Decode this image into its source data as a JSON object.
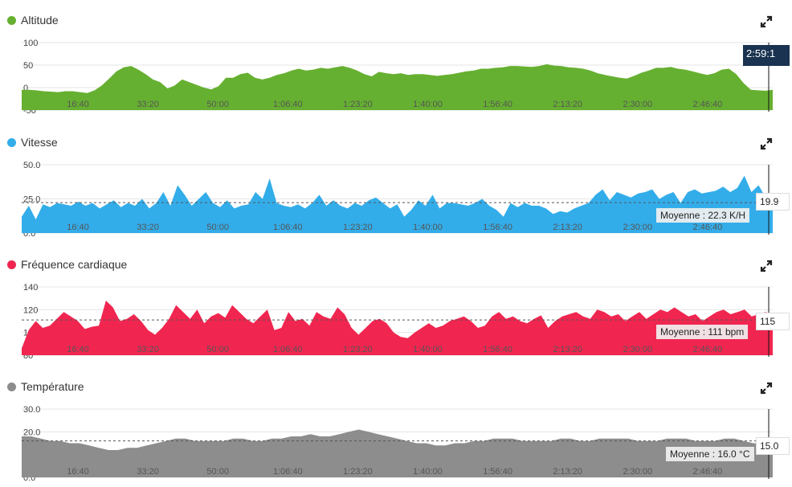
{
  "icons": {
    "expand": "expand-arrows-icon",
    "series_dot": "circle-icon"
  },
  "cursor_time": "2:59:1",
  "x_ticks": [
    "16:40",
    "33:20",
    "50:00",
    "1:06:40",
    "1:23:20",
    "1:40:00",
    "1:56:40",
    "2:13:20",
    "2:30:00",
    "2:46:40"
  ],
  "chart_data": [
    {
      "type": "area",
      "title": "Altitude",
      "color": "#66b031",
      "ylim": [
        -50,
        100
      ],
      "y_ticks": [
        "100",
        "50",
        "0",
        "-50"
      ],
      "x_ticks": [
        "16:40",
        "33:20",
        "50:00",
        "1:06:40",
        "1:23:20",
        "1:40:00",
        "1:56:40",
        "2:13:20",
        "2:30:00",
        "2:46:40"
      ],
      "values": [
        -5,
        -5,
        -6,
        -8,
        -9,
        -10,
        -8,
        -8,
        -10,
        -12,
        -6,
        5,
        20,
        36,
        45,
        48,
        40,
        30,
        18,
        12,
        -2,
        5,
        18,
        12,
        6,
        0,
        -4,
        3,
        22,
        22,
        30,
        33,
        22,
        18,
        22,
        28,
        32,
        38,
        42,
        38,
        40,
        44,
        42,
        45,
        48,
        44,
        38,
        30,
        25,
        35,
        32,
        30,
        32,
        28,
        30,
        30,
        28,
        26,
        28,
        30,
        33,
        36,
        38,
        42,
        42,
        44,
        45,
        48,
        48,
        47,
        46,
        48,
        52,
        49,
        48,
        45,
        44,
        42,
        38,
        32,
        28,
        25,
        22,
        20,
        26,
        33,
        38,
        44,
        44,
        46,
        42,
        40,
        36,
        32,
        28,
        32,
        40,
        42,
        30,
        10,
        -5,
        -6,
        -7,
        -5
      ],
      "cursor_value": "",
      "average_label": ""
    },
    {
      "type": "area",
      "title": "Vitesse",
      "color": "#33adea",
      "ylim": [
        0,
        50
      ],
      "y_ticks": [
        "50.0",
        "25.0",
        "0.0"
      ],
      "x_ticks": [
        "16:40",
        "33:20",
        "50:00",
        "1:06:40",
        "1:23:20",
        "1:40:00",
        "1:56:40",
        "2:13:20",
        "2:30:00",
        "2:46:40"
      ],
      "values": [
        12,
        20,
        10,
        21,
        19,
        22,
        21,
        20,
        23,
        20,
        22,
        18,
        21,
        24,
        19,
        22,
        20,
        25,
        18,
        22,
        30,
        20,
        35,
        28,
        20,
        25,
        30,
        22,
        19,
        24,
        18,
        20,
        21,
        30,
        25,
        40,
        22,
        20,
        19,
        21,
        18,
        22,
        28,
        20,
        24,
        20,
        18,
        22,
        20,
        24,
        26,
        22,
        18,
        21,
        12,
        17,
        24,
        20,
        28,
        18,
        22,
        22,
        21,
        20,
        22,
        25,
        20,
        17,
        12,
        22,
        19,
        22,
        20,
        20,
        18,
        14,
        16,
        15,
        18,
        20,
        22,
        28,
        32,
        24,
        30,
        28,
        26,
        29,
        30,
        32,
        25,
        28,
        30,
        22,
        30,
        32,
        29,
        30,
        31,
        34,
        30,
        33,
        42,
        30,
        35,
        26,
        22
      ],
      "average": 22.3,
      "cursor_value": "19.9",
      "average_label": "Moyenne : 22.3 K/H"
    },
    {
      "type": "area",
      "title": "Fréquence cardiaque",
      "color": "#f02650",
      "ylim": [
        80,
        140
      ],
      "y_ticks": [
        "140",
        "120",
        "100",
        "80"
      ],
      "x_ticks": [
        "16:40",
        "33:20",
        "50:00",
        "1:06:40",
        "1:23:20",
        "1:40:00",
        "1:56:40",
        "2:13:20",
        "2:30:00",
        "2:46:40"
      ],
      "values": [
        86,
        102,
        110,
        104,
        106,
        112,
        118,
        114,
        110,
        103,
        105,
        106,
        128,
        122,
        110,
        112,
        116,
        110,
        102,
        98,
        104,
        112,
        124,
        118,
        112,
        120,
        108,
        114,
        117,
        113,
        124,
        118,
        112,
        108,
        114,
        120,
        102,
        104,
        118,
        110,
        112,
        106,
        118,
        114,
        112,
        122,
        116,
        104,
        98,
        104,
        110,
        112,
        108,
        100,
        96,
        95,
        100,
        104,
        108,
        104,
        106,
        110,
        112,
        114,
        110,
        104,
        106,
        114,
        118,
        112,
        114,
        110,
        108,
        112,
        115,
        104,
        110,
        114,
        116,
        118,
        114,
        112,
        120,
        118,
        114,
        116,
        110,
        114,
        118,
        112,
        116,
        120,
        118,
        122,
        118,
        114,
        116,
        110,
        114,
        118,
        120,
        116,
        118,
        120,
        114,
        116,
        118,
        115
      ],
      "average": 111,
      "cursor_value": "115",
      "average_label": "Moyenne : 111 bpm"
    },
    {
      "type": "area",
      "title": "Température",
      "color": "#8d8d8d",
      "ylim": [
        0,
        30
      ],
      "y_ticks": [
        "30.0",
        "20.0",
        "10.0",
        "0.0"
      ],
      "x_ticks": [
        "16:40",
        "33:20",
        "50:00",
        "1:06:40",
        "1:23:20",
        "1:40:00",
        "1:56:40",
        "2:13:20",
        "2:30:00",
        "2:46:40"
      ],
      "values": [
        18,
        18,
        17,
        16,
        16,
        15,
        15,
        14,
        13,
        12,
        12,
        13,
        13,
        14,
        15,
        16,
        17,
        17,
        16,
        16,
        16,
        16,
        17,
        17,
        16,
        16,
        17,
        17,
        18,
        18,
        19,
        18,
        18,
        19,
        20,
        21,
        20,
        19,
        18,
        17,
        16,
        15,
        15,
        14,
        14,
        15,
        15,
        16,
        16,
        17,
        17,
        17,
        16,
        16,
        16,
        16,
        17,
        17,
        16,
        16,
        17,
        17,
        17,
        17,
        16,
        16,
        16,
        17,
        17,
        17,
        16,
        16,
        16,
        17,
        17,
        16,
        15,
        15,
        15
      ],
      "average": 16.0,
      "cursor_value": "15.0",
      "average_label": "Moyenne : 16.0 °C"
    }
  ]
}
